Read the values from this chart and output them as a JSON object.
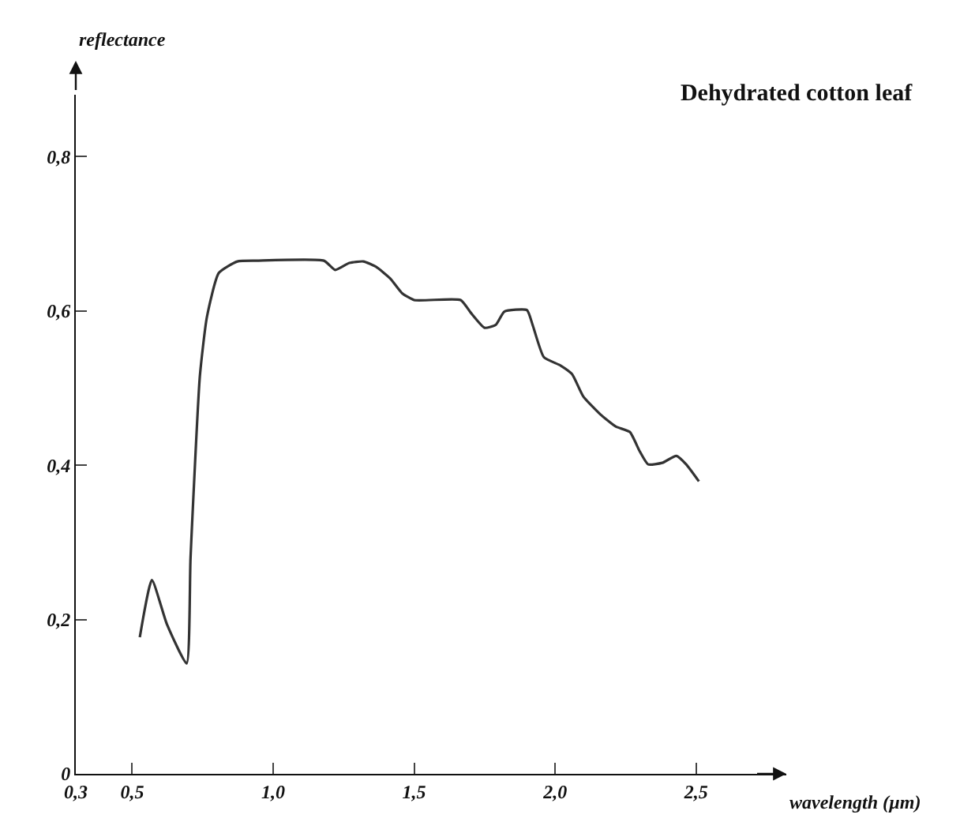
{
  "chart_data": {
    "type": "line",
    "title": "Dehydrated cotton leaf",
    "xlabel": "wavelength (µm)",
    "ylabel": "reflectance",
    "x": [
      0.527,
      0.57,
      0.623,
      0.693,
      0.707,
      0.74,
      0.765,
      0.807,
      0.873,
      0.94,
      1.18,
      1.22,
      1.27,
      1.32,
      1.365,
      1.415,
      1.457,
      1.5,
      1.665,
      1.7,
      1.75,
      1.79,
      1.82,
      1.9,
      1.92,
      1.96,
      2.02,
      2.06,
      2.1,
      2.16,
      2.215,
      2.265,
      2.3,
      2.33,
      2.38,
      2.43,
      2.465,
      2.51
    ],
    "series": [
      {
        "color": "#333333",
        "values": [
          0.177,
          0.251,
          0.194,
          0.143,
          0.28,
          0.515,
          0.592,
          0.649,
          0.664,
          0.665,
          0.665,
          0.653,
          0.662,
          0.664,
          0.657,
          0.642,
          0.623,
          0.614,
          0.614,
          0.598,
          0.578,
          0.582,
          0.599,
          0.601,
          0.582,
          0.54,
          0.529,
          0.518,
          0.489,
          0.466,
          0.45,
          0.443,
          0.418,
          0.401,
          0.403,
          0.412,
          0.401,
          0.379
        ]
      }
    ],
    "xlim": [
      0.3,
      2.82
    ],
    "ylim": [
      0,
      0.88
    ],
    "xticks": [
      {
        "value": 0.3,
        "label": "0,3"
      },
      {
        "value": 0.5,
        "label": "0,5"
      },
      {
        "value": 1.0,
        "label": "1,0"
      },
      {
        "value": 1.5,
        "label": "1,5"
      },
      {
        "value": 2.0,
        "label": "2,0"
      },
      {
        "value": 2.5,
        "label": "2,5"
      }
    ],
    "yticks": [
      0,
      {
        "value": 0.2,
        "label": "0,2"
      },
      {
        "value": 0.4,
        "label": "0,4"
      },
      {
        "value": 0.6,
        "label": "0,6"
      },
      {
        "value": 0.8,
        "label": "0,8"
      }
    ],
    "grid": false,
    "marker": "none",
    "line_style": "solid"
  }
}
